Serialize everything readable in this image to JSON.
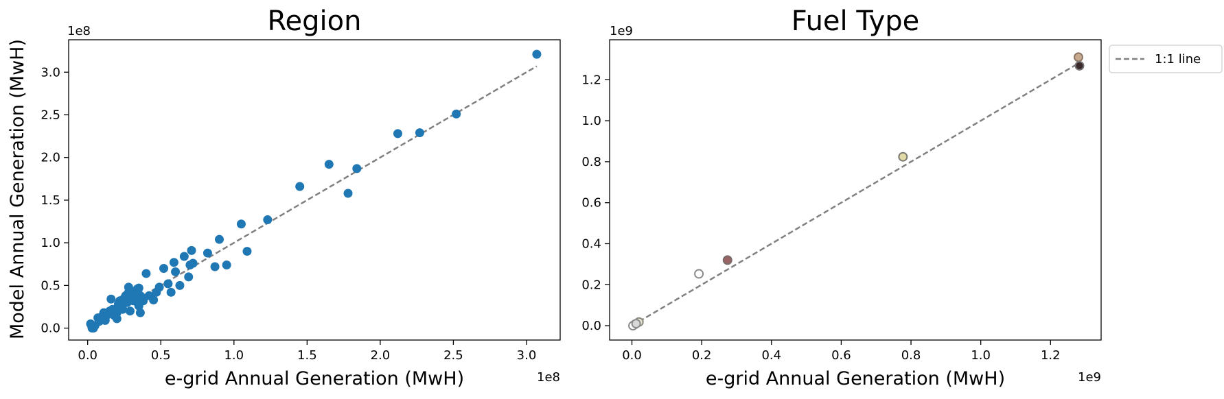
{
  "chart_data": [
    {
      "type": "scatter",
      "title": "Region",
      "xlabel": "e-grid Annual Generation (MwH)",
      "ylabel": "Model Annual Generation (MwH)",
      "x_offset_text": "1e8",
      "y_offset_text": "1e8",
      "xlim": [
        -0.13,
        3.23
      ],
      "ylim": [
        -0.14,
        3.38
      ],
      "xticks": [
        0.0,
        0.5,
        1.0,
        1.5,
        2.0,
        2.5,
        3.0
      ],
      "xtick_labels": [
        "0.0",
        "0.5",
        "1.0",
        "1.5",
        "2.0",
        "2.5",
        "3.0"
      ],
      "yticks": [
        0.0,
        0.5,
        1.0,
        1.5,
        2.0,
        2.5,
        3.0
      ],
      "ytick_labels": [
        "0.0",
        "0.5",
        "1.0",
        "1.5",
        "2.0",
        "2.5",
        "3.0"
      ],
      "grid": false,
      "reference_line": {
        "x": [
          0.0,
          3.07
        ],
        "y": [
          0.0,
          3.07
        ],
        "style": "dashed",
        "color": "#808080"
      },
      "series": [
        {
          "color": "#1f77b4",
          "x": [
            0.02,
            0.03,
            0.04,
            0.05,
            0.07,
            0.08,
            0.1,
            0.11,
            0.12,
            0.13,
            0.15,
            0.17,
            0.18,
            0.2,
            0.21,
            0.22,
            0.24,
            0.25,
            0.26,
            0.27,
            0.28,
            0.29,
            0.3,
            0.3,
            0.31,
            0.32,
            0.33,
            0.34,
            0.35,
            0.35,
            0.36,
            0.37,
            0.38,
            0.4,
            0.42,
            0.45,
            0.47,
            0.49,
            0.52,
            0.55,
            0.57,
            0.59,
            0.6,
            0.63,
            0.66,
            0.69,
            0.7,
            0.71,
            0.72,
            0.82,
            0.87,
            0.9,
            0.95,
            1.05,
            1.09,
            1.23,
            1.45,
            1.65,
            1.78,
            1.84,
            2.12,
            2.27,
            2.52,
            3.07,
            0.2,
            0.16,
            0.28,
            0.34,
            0.36,
            0.23
          ],
          "y": [
            0.05,
            0.0,
            0.0,
            0.03,
            0.12,
            0.08,
            0.14,
            0.18,
            0.09,
            0.15,
            0.2,
            0.22,
            0.15,
            0.11,
            0.28,
            0.32,
            0.22,
            0.35,
            0.38,
            0.3,
            0.48,
            0.2,
            0.36,
            0.42,
            0.32,
            0.4,
            0.44,
            0.3,
            0.26,
            0.47,
            0.18,
            0.36,
            0.32,
            0.64,
            0.38,
            0.33,
            0.42,
            0.48,
            0.7,
            0.52,
            0.42,
            0.77,
            0.66,
            0.5,
            0.84,
            0.6,
            0.74,
            0.91,
            0.76,
            0.88,
            0.72,
            1.04,
            0.74,
            1.22,
            0.9,
            1.27,
            1.66,
            1.92,
            1.58,
            1.87,
            2.28,
            2.29,
            2.51,
            3.21,
            0.18,
            0.34,
            0.42,
            0.46,
            0.38,
            0.26
          ]
        }
      ]
    },
    {
      "type": "scatter",
      "title": "Fuel Type",
      "xlabel": "e-grid Annual Generation (MwH)",
      "x_offset_text": "1e9",
      "y_offset_text": "1e9",
      "xlim": [
        -0.064,
        1.345
      ],
      "ylim": [
        -0.07,
        1.395
      ],
      "xticks": [
        0.0,
        0.2,
        0.4,
        0.6,
        0.8,
        1.0,
        1.2
      ],
      "xtick_labels": [
        "0.0",
        "0.2",
        "0.4",
        "0.6",
        "0.8",
        "1.0",
        "1.2"
      ],
      "yticks": [
        0.0,
        0.2,
        0.4,
        0.6,
        0.8,
        1.0,
        1.2
      ],
      "ytick_labels": [
        "0.0",
        "0.2",
        "0.4",
        "0.6",
        "0.8",
        "1.0",
        "1.2"
      ],
      "grid": false,
      "legend": {
        "location": "outside upper right",
        "entries": [
          "1:1 line"
        ]
      },
      "reference_line": {
        "x": [
          0.0,
          1.28
        ],
        "y": [
          0.0,
          1.28
        ],
        "style": "dashed",
        "color": "#808080",
        "name": "1:1 line"
      },
      "points": [
        {
          "x": 1.28,
          "y": 1.31,
          "fill": "#c7a98e",
          "stroke": "#8a7564"
        },
        {
          "x": 1.283,
          "y": 1.268,
          "fill": "#3b2a2a",
          "stroke": "#777777"
        },
        {
          "x": 0.777,
          "y": 0.824,
          "fill": "#e3d9a6",
          "stroke": "#7a7a70"
        },
        {
          "x": 0.274,
          "y": 0.32,
          "fill": "#9a6464",
          "stroke": "#7a6a6a"
        },
        {
          "x": 0.192,
          "y": 0.253,
          "fill": "#ffffff",
          "stroke": "#8a8a8a"
        },
        {
          "x": 0.02,
          "y": 0.018,
          "fill": "#e8e6d0",
          "stroke": "#8a8a80"
        },
        {
          "x": 0.008,
          "y": 0.006,
          "fill": "#ffffff",
          "stroke": "#8a8a8a"
        },
        {
          "x": 0.003,
          "y": 0.0,
          "fill": "#ffffff",
          "stroke": "#8a8a8a"
        },
        {
          "x": 0.012,
          "y": 0.01,
          "fill": "#d9d9d9",
          "stroke": "#8a8a8a"
        }
      ]
    }
  ]
}
